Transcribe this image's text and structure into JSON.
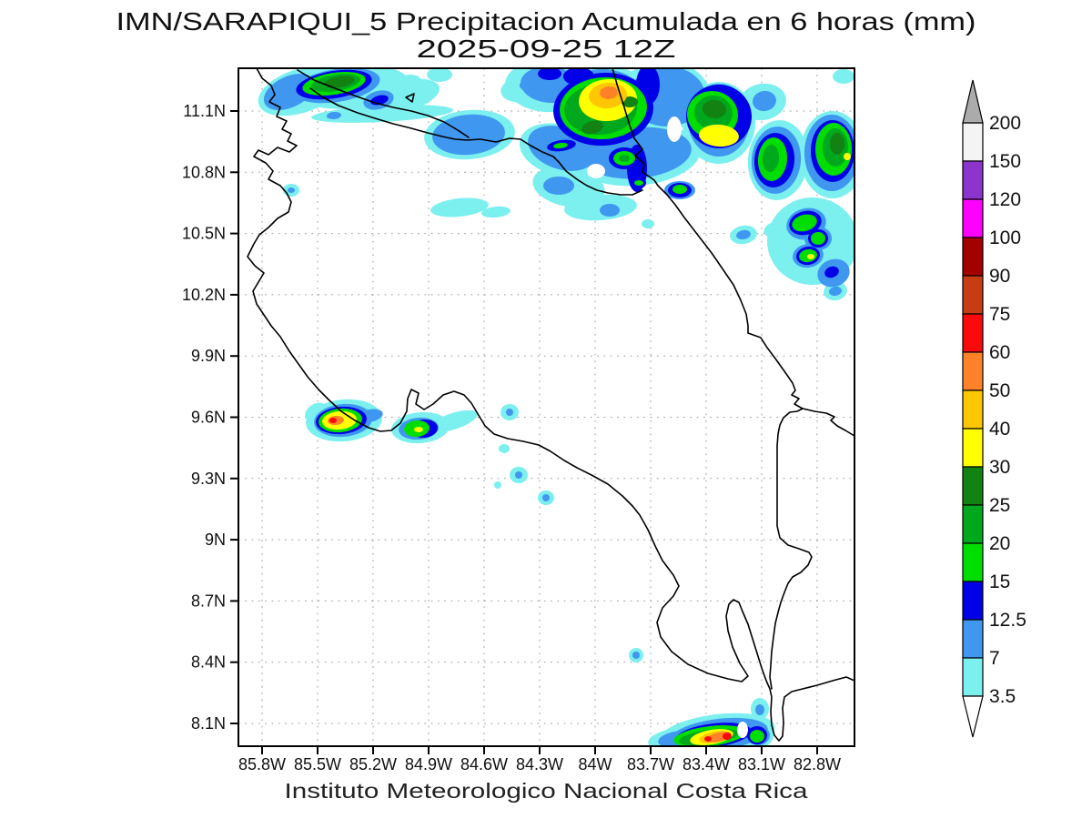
{
  "figure": {
    "title_line1": "IMN/SARAPIQUI_5 Precipitacion Acumulada en 6 horas (mm)",
    "title_line2": "2025-09-25 12Z",
    "footer": "Instituto Meteorologico Nacional Costa Rica"
  },
  "map": {
    "lat_tick_labels": [
      "11.1N",
      "10.8N",
      "10.5N",
      "10.2N",
      "9.9N",
      "9.6N",
      "9.3N",
      "9N",
      "8.7N",
      "8.4N",
      "8.1N"
    ],
    "lon_tick_labels": [
      "85.8W",
      "85.5W",
      "85.2W",
      "84.9W",
      "84.6W",
      "84.3W",
      "84W",
      "83.7W",
      "83.4W",
      "83.1W",
      "82.8W"
    ]
  },
  "colorbar": {
    "tick_labels_top_to_bottom": [
      "200",
      "150",
      "120",
      "100",
      "90",
      "75",
      "60",
      "50",
      "40",
      "30",
      "25",
      "20",
      "15",
      "12.5",
      "7",
      "3.5"
    ],
    "levels_low_to_high": [
      3.5,
      7,
      12.5,
      15,
      20,
      25,
      30,
      40,
      50,
      60,
      75,
      90,
      100,
      120,
      150,
      200
    ],
    "segment_colors_low_to_high": [
      "#7CEFEF",
      "#3F97F0",
      "#0000E8",
      "#00DE00",
      "#00A81E",
      "#128212",
      "#FFFF00",
      "#FFC603",
      "#FF8228",
      "#FA0A0A",
      "#C83C14",
      "#A30000",
      "#FF00FF",
      "#8C35CC",
      "#F4F4F4"
    ],
    "arrow_top_color": "#ABABAB",
    "arrow_bottom_color": "#FFFFFF"
  }
}
